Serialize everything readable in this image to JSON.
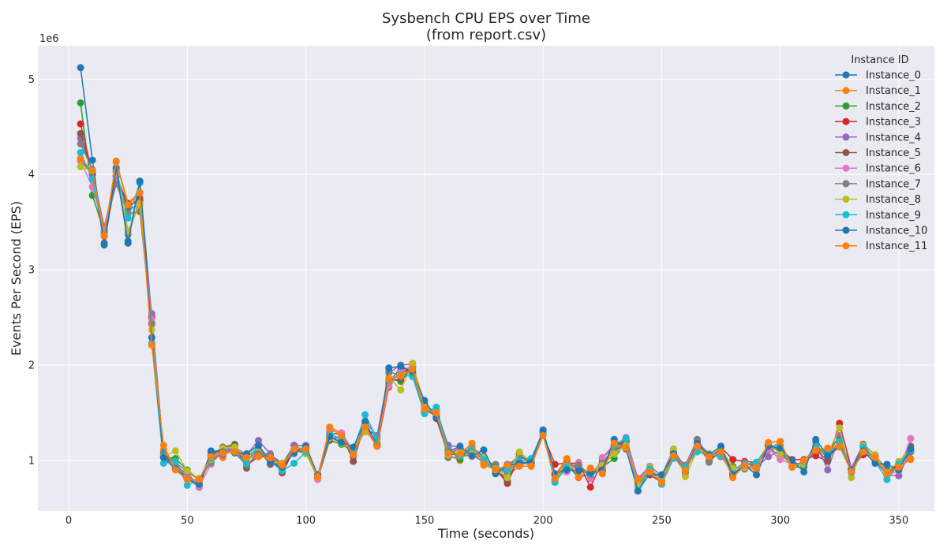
{
  "chart_data": {
    "type": "line",
    "title": "Sysbench CPU EPS over Time",
    "subtitle": "(from report.csv)",
    "xlabel": "Time (seconds)",
    "ylabel": "Events Per Second (EPS)",
    "y_offset_label": "1e6",
    "y_scale_factor": 1000000,
    "xlim": [
      -13,
      365
    ],
    "ylim": [
      470000,
      5350000
    ],
    "x_ticks": [
      0,
      50,
      100,
      150,
      200,
      250,
      300,
      350
    ],
    "x_tick_labels": [
      "0",
      "50",
      "100",
      "150",
      "200",
      "250",
      "300",
      "350"
    ],
    "y_ticks": [
      1000000,
      2000000,
      3000000,
      4000000,
      5000000
    ],
    "y_tick_labels": [
      "1",
      "2",
      "3",
      "4",
      "5"
    ],
    "grid": true,
    "legend": {
      "title": "Instance ID",
      "placement": "top-right"
    },
    "x": [
      5,
      10,
      15,
      20,
      25,
      30,
      35,
      40,
      45,
      50,
      55,
      60,
      65,
      70,
      75,
      80,
      85,
      90,
      95,
      100,
      105,
      110,
      115,
      120,
      125,
      130,
      135,
      140,
      145,
      150,
      155,
      160,
      165,
      170,
      175,
      180,
      185,
      190,
      195,
      200,
      205,
      210,
      215,
      220,
      225,
      230,
      235,
      240,
      245,
      250,
      255,
      260,
      265,
      270,
      275,
      280,
      285,
      290,
      295,
      300,
      305,
      310,
      315,
      320,
      325,
      330,
      335,
      340,
      345,
      350,
      355
    ],
    "base": [
      4250000,
      3900000,
      3330000,
      4030000,
      3520000,
      3780000,
      2380000,
      1050000,
      960000,
      830000,
      770000,
      1040000,
      1080000,
      1120000,
      1000000,
      1100000,
      1020000,
      950000,
      1080000,
      1110000,
      830000,
      1250000,
      1220000,
      1080000,
      1370000,
      1200000,
      1820000,
      1900000,
      1950000,
      1560000,
      1500000,
      1080000,
      1070000,
      1120000,
      1000000,
      920000,
      870000,
      990000,
      980000,
      1280000,
      830000,
      940000,
      870000,
      850000,
      940000,
      1120000,
      1170000,
      760000,
      890000,
      800000,
      1060000,
      920000,
      1160000,
      1030000,
      1080000,
      890000,
      940000,
      930000,
      1120000,
      1100000,
      960000,
      960000,
      1130000,
      1030000,
      1200000,
      890000,
      1120000,
      1020000,
      880000,
      920000,
      1100000
    ],
    "series": [
      {
        "name": "Instance_0",
        "color": "#1f77b4",
        "offsets": [
          -100000,
          100000,
          -50000,
          0,
          -220000,
          150000,
          120000,
          20000,
          -20000,
          30000,
          -30000,
          50000,
          30000,
          -10000,
          60000,
          -20000,
          40000,
          20000,
          -10000,
          50000,
          -20000,
          -30000,
          40000,
          10000,
          -30000,
          60000,
          -10000,
          80000,
          -30000,
          20000,
          -50000,
          30000,
          -10000,
          20000,
          40000,
          -30000,
          50000,
          10000,
          -30000,
          20000,
          -40000,
          20000,
          -50000,
          10000,
          -50000,
          30000,
          40000,
          20000,
          -30000,
          50000,
          -20000,
          10000,
          30000,
          40000,
          -40000,
          30000,
          -10000,
          20000,
          10000,
          -50000,
          30000,
          -20000,
          10000,
          20000,
          -30000,
          10000,
          40000,
          -40000,
          20000,
          30000,
          -10000
        ]
      },
      {
        "name": "Instance_1",
        "color": "#ff7f0e",
        "offsets": [
          -80000,
          130000,
          20000,
          110000,
          180000,
          30000,
          -150000,
          60000,
          -50000,
          -20000,
          10000,
          20000,
          -50000,
          30000,
          -20000,
          50000,
          -10000,
          -40000,
          10000,
          20000,
          -20000,
          100000,
          70000,
          -40000,
          -10000,
          -50000,
          50000,
          -20000,
          50000,
          -20000,
          20000,
          -20000,
          -70000,
          60000,
          -50000,
          20000,
          -30000,
          -50000,
          10000,
          -10000,
          20000,
          70000,
          -40000,
          50000,
          -50000,
          40000,
          -30000,
          40000,
          20000,
          -20000,
          -10000,
          30000,
          -20000,
          -30000,
          10000,
          -60000,
          10000,
          -20000,
          -10000,
          100000,
          -30000,
          30000,
          -20000,
          10000,
          -60000,
          30000,
          -40000,
          30000,
          -40000,
          10000,
          -80000
        ]
      },
      {
        "name": "Instance_2",
        "color": "#2ca02c",
        "offsets": [
          500000,
          -120000,
          70000,
          20000,
          -150000,
          -50000,
          110000,
          -10000,
          60000,
          70000,
          30000,
          10000,
          60000,
          50000,
          -20000,
          50000,
          -30000,
          10000,
          80000,
          40000,
          -20000,
          -40000,
          -50000,
          10000,
          10000,
          -40000,
          40000,
          -70000,
          20000,
          -20000,
          -40000,
          50000,
          -60000,
          20000,
          20000,
          -40000,
          40000,
          80000,
          -40000,
          40000,
          -20000,
          20000,
          60000,
          -20000,
          -10000,
          -100000,
          30000,
          -30000,
          10000,
          -50000,
          30000,
          -30000,
          -20000,
          30000,
          -40000,
          50000,
          -30000,
          20000,
          30000,
          20000,
          -30000,
          -30000,
          20000,
          50000,
          50000,
          20000,
          20000,
          -30000,
          -20000,
          20000,
          -10000
        ]
      },
      {
        "name": "Instance_3",
        "color": "#d62728",
        "offsets": [
          280000,
          110000,
          30000,
          -50000,
          170000,
          -70000,
          130000,
          -10000,
          -40000,
          40000,
          40000,
          -40000,
          40000,
          20000,
          -50000,
          -60000,
          30000,
          -80000,
          30000,
          0,
          -20000,
          -30000,
          30000,
          30000,
          -40000,
          -50000,
          -50000,
          40000,
          -10000,
          40000,
          -60000,
          -20000,
          60000,
          -50000,
          10000,
          -10000,
          -110000,
          50000,
          20000,
          -10000,
          130000,
          30000,
          100000,
          -130000,
          50000,
          -30000,
          40000,
          50000,
          -40000,
          -30000,
          -30000,
          0,
          30000,
          -40000,
          60000,
          120000,
          50000,
          50000,
          0,
          20000,
          50000,
          50000,
          -80000,
          -40000,
          190000,
          30000,
          -60000,
          30000,
          -30000,
          40000,
          20000
        ]
      },
      {
        "name": "Instance_4",
        "color": "#9467bd",
        "offsets": [
          130000,
          130000,
          120000,
          -50000,
          110000,
          -100000,
          160000,
          0,
          20000,
          -20000,
          -50000,
          40000,
          -20000,
          20000,
          60000,
          110000,
          50000,
          -10000,
          80000,
          -20000,
          -10000,
          -20000,
          30000,
          -40000,
          40000,
          60000,
          100000,
          100000,
          60000,
          -20000,
          30000,
          80000,
          70000,
          -40000,
          40000,
          -30000,
          90000,
          40000,
          40000,
          20000,
          30000,
          -40000,
          80000,
          -40000,
          80000,
          40000,
          70000,
          50000,
          50000,
          40000,
          60000,
          -10000,
          60000,
          10000,
          40000,
          0,
          40000,
          0,
          -80000,
          0,
          20000,
          -10000,
          60000,
          -130000,
          60000,
          30000,
          50000,
          -20000,
          -30000,
          -80000,
          0
        ]
      },
      {
        "name": "Instance_5",
        "color": "#8c564b",
        "offsets": [
          180000,
          130000,
          -60000,
          -40000,
          140000,
          -30000,
          60000,
          20000,
          -40000,
          0,
          -30000,
          0,
          60000,
          40000,
          -80000,
          10000,
          -60000,
          20000,
          30000,
          -30000,
          -10000,
          30000,
          60000,
          -90000,
          20000,
          -30000,
          20000,
          -50000,
          30000,
          -40000,
          -20000,
          -30000,
          10000,
          -60000,
          30000,
          10000,
          -90000,
          80000,
          -20000,
          10000,
          10000,
          50000,
          40000,
          30000,
          20000,
          30000,
          30000,
          -80000,
          20000,
          -50000,
          -10000,
          -50000,
          40000,
          -40000,
          40000,
          30000,
          -20000,
          30000,
          40000,
          0,
          -20000,
          30000,
          -20000,
          -30000,
          10000,
          -10000,
          50000,
          40000,
          -10000,
          50000,
          50000
        ]
      },
      {
        "name": "Instance_6",
        "color": "#e377c2",
        "offsets": [
          -110000,
          -30000,
          90000,
          -30000,
          -130000,
          -80000,
          100000,
          -20000,
          -30000,
          20000,
          -40000,
          -80000,
          20000,
          20000,
          20000,
          -20000,
          20000,
          10000,
          -10000,
          50000,
          -30000,
          60000,
          70000,
          20000,
          -70000,
          -10000,
          -40000,
          30000,
          50000,
          0,
          20000,
          0,
          60000,
          -80000,
          30000,
          -20000,
          10000,
          -30000,
          0,
          20000,
          20000,
          -60000,
          110000,
          -40000,
          90000,
          50000,
          60000,
          20000,
          50000,
          -40000,
          -10000,
          10000,
          30000,
          30000,
          -30000,
          -30000,
          -20000,
          -30000,
          0,
          -90000,
          0,
          0,
          10000,
          50000,
          -30000,
          30000,
          -30000,
          20000,
          -30000,
          -30000,
          130000
        ]
      },
      {
        "name": "Instance_7",
        "color": "#7f7f7f",
        "offsets": [
          70000,
          150000,
          70000,
          -130000,
          70000,
          -170000,
          50000,
          30000,
          20000,
          50000,
          30000,
          -60000,
          20000,
          -40000,
          -50000,
          -30000,
          20000,
          0,
          20000,
          20000,
          10000,
          -10000,
          -20000,
          -10000,
          10000,
          -30000,
          120000,
          -20000,
          -50000,
          -30000,
          -20000,
          -50000,
          -30000,
          -60000,
          -20000,
          40000,
          -20000,
          50000,
          30000,
          20000,
          -50000,
          10000,
          80000,
          0,
          30000,
          -20000,
          -10000,
          -10000,
          -10000,
          30000,
          20000,
          30000,
          60000,
          -50000,
          30000,
          -30000,
          20000,
          30000,
          40000,
          20000,
          -20000,
          10000,
          -30000,
          70000,
          -20000,
          10000,
          -20000,
          30000,
          30000,
          -10000,
          20000
        ]
      },
      {
        "name": "Instance_8",
        "color": "#bcbd22",
        "offsets": [
          -170000,
          140000,
          60000,
          20000,
          -110000,
          -90000,
          -10000,
          -10000,
          140000,
          60000,
          40000,
          -30000,
          50000,
          20000,
          40000,
          40000,
          -40000,
          20000,
          20000,
          -40000,
          10000,
          -10000,
          -40000,
          40000,
          -70000,
          20000,
          50000,
          -160000,
          70000,
          20000,
          -10000,
          -20000,
          20000,
          -50000,
          30000,
          -10000,
          -50000,
          100000,
          0,
          30000,
          -30000,
          0,
          10000,
          40000,
          10000,
          -50000,
          -10000,
          -20000,
          40000,
          -10000,
          60000,
          -90000,
          -50000,
          40000,
          50000,
          30000,
          -10000,
          10000,
          60000,
          -30000,
          -20000,
          0,
          20000,
          30000,
          140000,
          -70000,
          40000,
          40000,
          -10000,
          70000,
          10000
        ]
      },
      {
        "name": "Instance_9",
        "color": "#17becf",
        "offsets": [
          -20000,
          50000,
          50000,
          30000,
          20000,
          130000,
          -150000,
          -80000,
          30000,
          -90000,
          30000,
          -20000,
          10000,
          -30000,
          -30000,
          60000,
          -30000,
          -60000,
          -110000,
          -20000,
          20000,
          30000,
          0,
          30000,
          110000,
          30000,
          20000,
          0,
          -70000,
          -70000,
          60000,
          30000,
          -20000,
          20000,
          10000,
          -40000,
          30000,
          0,
          40000,
          10000,
          -60000,
          -10000,
          20000,
          10000,
          -50000,
          40000,
          60000,
          -80000,
          20000,
          -50000,
          -40000,
          10000,
          -70000,
          30000,
          -20000,
          -30000,
          20000,
          50000,
          40000,
          50000,
          -30000,
          30000,
          20000,
          40000,
          0,
          -20000,
          20000,
          -30000,
          -80000,
          40000,
          10000
        ]
      },
      {
        "name": "Instance_10",
        "color": "#1f77b4",
        "offsets": [
          870000,
          250000,
          -70000,
          40000,
          -240000,
          150000,
          -90000,
          -20000,
          -50000,
          -30000,
          -20000,
          60000,
          10000,
          -40000,
          70000,
          60000,
          -40000,
          -20000,
          0,
          40000,
          20000,
          0,
          -30000,
          60000,
          40000,
          -40000,
          150000,
          90000,
          -20000,
          70000,
          -50000,
          10000,
          80000,
          -70000,
          110000,
          -60000,
          80000,
          -20000,
          0,
          40000,
          30000,
          -40000,
          20000,
          20000,
          -40000,
          100000,
          -50000,
          -80000,
          -30000,
          50000,
          10000,
          -30000,
          20000,
          30000,
          70000,
          -40000,
          10000,
          -80000,
          30000,
          30000,
          40000,
          -80000,
          90000,
          20000,
          -50000,
          10000,
          -20000,
          -50000,
          80000,
          -20000,
          20000
        ]
      },
      {
        "name": "Instance_11",
        "color": "#ff7f0e",
        "offsets": [
          -90000,
          140000,
          30000,
          100000,
          160000,
          30000,
          -170000,
          110000,
          -60000,
          -30000,
          30000,
          0,
          0,
          -30000,
          30000,
          -60000,
          10000,
          0,
          40000,
          10000,
          0,
          90000,
          40000,
          -20000,
          -20000,
          -50000,
          30000,
          -10000,
          10000,
          -20000,
          0,
          0,
          0,
          60000,
          -40000,
          -20000,
          80000,
          -50000,
          -40000,
          -20000,
          -20000,
          80000,
          -50000,
          70000,
          -80000,
          60000,
          -40000,
          40000,
          -10000,
          -30000,
          -10000,
          -30000,
          -10000,
          10000,
          10000,
          -70000,
          10000,
          -10000,
          70000,
          100000,
          -30000,
          40000,
          -20000,
          100000,
          -50000,
          -10000,
          -30000,
          10000,
          -20000,
          10000,
          -90000
        ]
      }
    ]
  }
}
